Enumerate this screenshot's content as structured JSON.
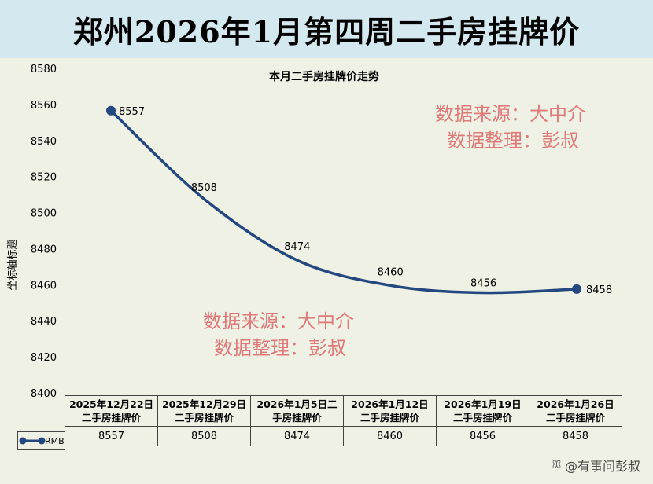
{
  "header": {
    "title": "郑州2026年1月第四周二手房挂牌价"
  },
  "chart_data": {
    "type": "line",
    "title": "本月二手房挂牌价走势",
    "ylabel": "坐标轴标题",
    "xlabel": "",
    "ylim": [
      8400,
      8580
    ],
    "yticks": [
      8400,
      8420,
      8440,
      8460,
      8480,
      8500,
      8520,
      8540,
      8560,
      8580
    ],
    "categories": [
      "2025年12月22日二手房挂牌价",
      "2025年12月29日二手房挂牌价",
      "2026年1月5日二手房挂牌价",
      "2026年1月12日二手房挂牌价",
      "2026年1月19日二手房挂牌价",
      "2026年1月26日二手房挂牌价"
    ],
    "category_lines": [
      [
        "2025年12月22日",
        "二手房挂牌价"
      ],
      [
        "2025年12月29日",
        "二手房挂牌价"
      ],
      [
        "2026年1月5日二",
        "手房挂牌价"
      ],
      [
        "2026年1月12日",
        "二手房挂牌价"
      ],
      [
        "2026年1月19日",
        "二手房挂牌价"
      ],
      [
        "2026年1月26日",
        "二手房挂牌价"
      ]
    ],
    "series": [
      {
        "name": "RMB",
        "values": [
          8557,
          8508,
          8474,
          8460,
          8456,
          8458
        ],
        "color": "#23477f"
      }
    ],
    "grid": false,
    "legend": "table-left"
  },
  "watermark": {
    "line1": "数据来源：大中介",
    "line2": "数据整理：彭叔"
  },
  "footer": {
    "credit": "@有事问彭叔"
  }
}
